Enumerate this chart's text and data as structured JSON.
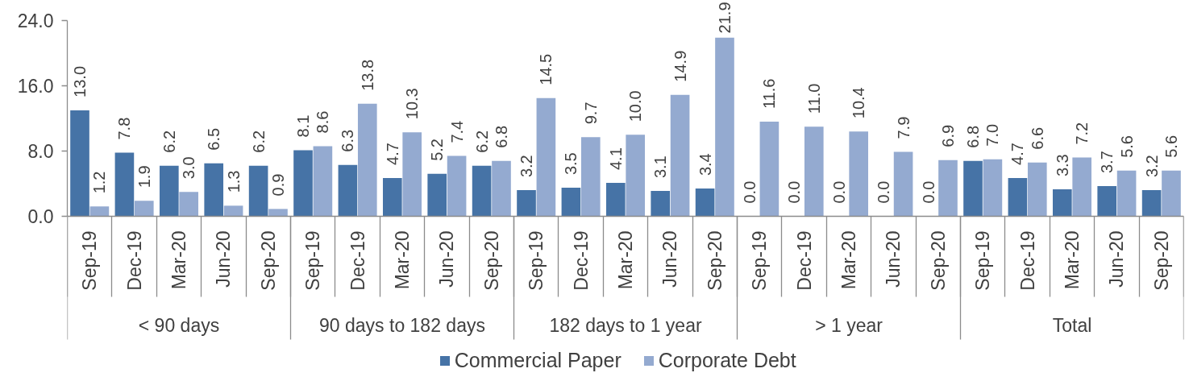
{
  "chart_data": {
    "type": "bar",
    "categories": [
      "Sep-19",
      "Dec-19",
      "Mar-20",
      "Jun-20",
      "Sep-20",
      "Sep-19",
      "Dec-19",
      "Mar-20",
      "Jun-20",
      "Sep-20",
      "Sep-19",
      "Dec-19",
      "Mar-20",
      "Jun-20",
      "Sep-20",
      "Sep-19",
      "Dec-19",
      "Mar-20",
      "Jun-20",
      "Sep-20",
      "Sep-19",
      "Dec-19",
      "Mar-20",
      "Jun-20",
      "Sep-20"
    ],
    "annotations": [
      "< 90 days",
      "90 days to 182 days",
      "182 days to 1 year",
      "> 1 year",
      "Total"
    ],
    "series": [
      {
        "name": "Commercial Paper",
        "color": "#4673a6",
        "values": [
          13.0,
          7.8,
          6.2,
          6.5,
          6.2,
          8.1,
          6.3,
          4.7,
          5.2,
          6.2,
          3.2,
          3.5,
          4.1,
          3.1,
          3.4,
          0.0,
          0.0,
          0.0,
          0.0,
          0.0,
          6.8,
          4.7,
          3.3,
          3.7,
          3.2
        ],
        "value_labels": [
          "13.0",
          "7.8",
          "6.2",
          "6.5",
          "6.2",
          "8.1",
          "6.3",
          "4.7",
          "5.2",
          "6.2",
          "3.2",
          "3.5",
          "4.1",
          "3.1",
          "3.4",
          "0.0",
          "0.0",
          "0.0",
          "0.0",
          "0.0",
          "6.8",
          "4.7",
          "3.3",
          "3.7",
          "3.2"
        ]
      },
      {
        "name": "Corporate Debt",
        "color": "#94aad0",
        "values": [
          1.2,
          1.9,
          3.0,
          1.3,
          0.9,
          8.6,
          13.8,
          10.3,
          7.4,
          6.8,
          14.5,
          9.7,
          10.0,
          14.9,
          21.9,
          11.6,
          11.0,
          10.4,
          7.9,
          6.9,
          7.0,
          6.6,
          7.2,
          5.6,
          5.6
        ],
        "value_labels": [
          "1.2",
          "1.9",
          "3.0",
          "1.3",
          "0.9",
          "8.6",
          "13.8",
          "10.3",
          "7.4",
          "6.8",
          "14.5",
          "9.7",
          "10.0",
          "14.9",
          "21.9",
          "11.6",
          "11.0",
          "10.4",
          "7.9",
          "6.9",
          "7.0",
          "6.6",
          "7.2",
          "5.6",
          "5.6"
        ]
      }
    ],
    "ylim": [
      0,
      24
    ],
    "yticks": [
      {
        "value": 0,
        "label": "0.0"
      },
      {
        "value": 8,
        "label": "8.0"
      },
      {
        "value": 16,
        "label": "16.0"
      },
      {
        "value": 24,
        "label": "24.0"
      }
    ],
    "legend": "bottom"
  }
}
